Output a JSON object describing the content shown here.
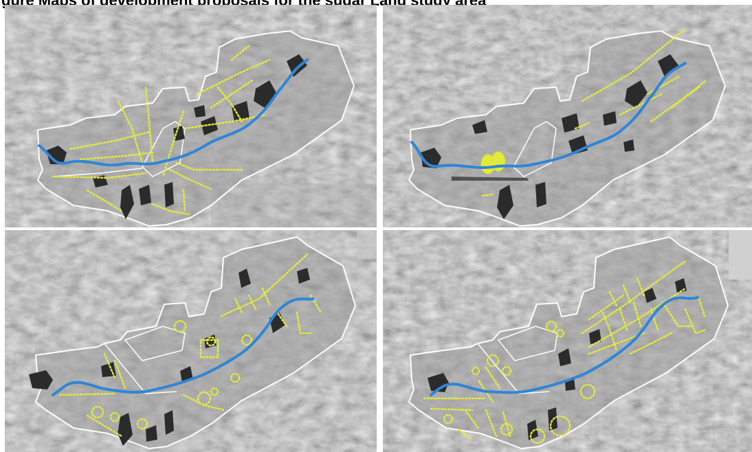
{
  "figure": {
    "caption": "gure    Maps of development proposals for the sugar Land study area"
  },
  "colors": {
    "river": "#2f86d6",
    "development": "#e3eb3a",
    "boundary": "#ffffff",
    "built_up": "#2b2b2b",
    "terrain": "#8c8c8c"
  },
  "panels": [
    {
      "id": "p1",
      "icon": "map-panel-top-left"
    },
    {
      "id": "p2",
      "icon": "map-panel-top-right"
    },
    {
      "id": "p3",
      "icon": "map-panel-bottom-left"
    },
    {
      "id": "p4",
      "icon": "map-panel-bottom-right"
    }
  ]
}
